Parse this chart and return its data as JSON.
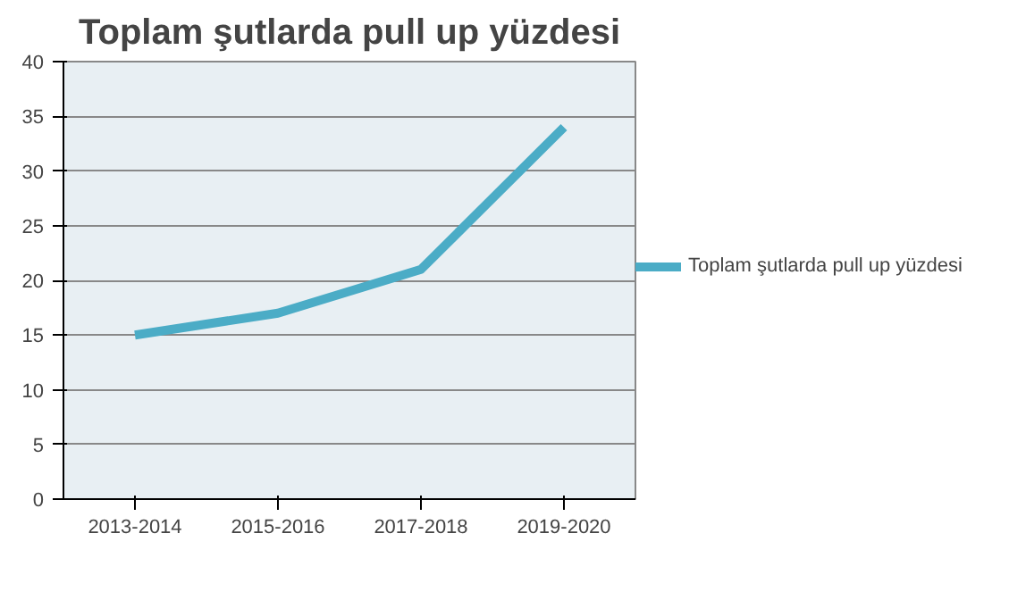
{
  "chart_data": {
    "type": "line",
    "title": "Toplam şutlarda pull up yüzdesi",
    "categories": [
      "2013-2014",
      "2015-2016",
      "2017-2018",
      "2019-2020"
    ],
    "series": [
      {
        "name": "Toplam şutlarda pull up yüzdesi",
        "color": "#4bacc6",
        "values": [
          15,
          17,
          21,
          34
        ]
      }
    ],
    "ylim": [
      0,
      40
    ],
    "yticks": [
      0,
      5,
      10,
      15,
      20,
      25,
      30,
      35,
      40
    ],
    "grid": "y",
    "legend": "right",
    "marker": "none",
    "line_style": "solid"
  }
}
